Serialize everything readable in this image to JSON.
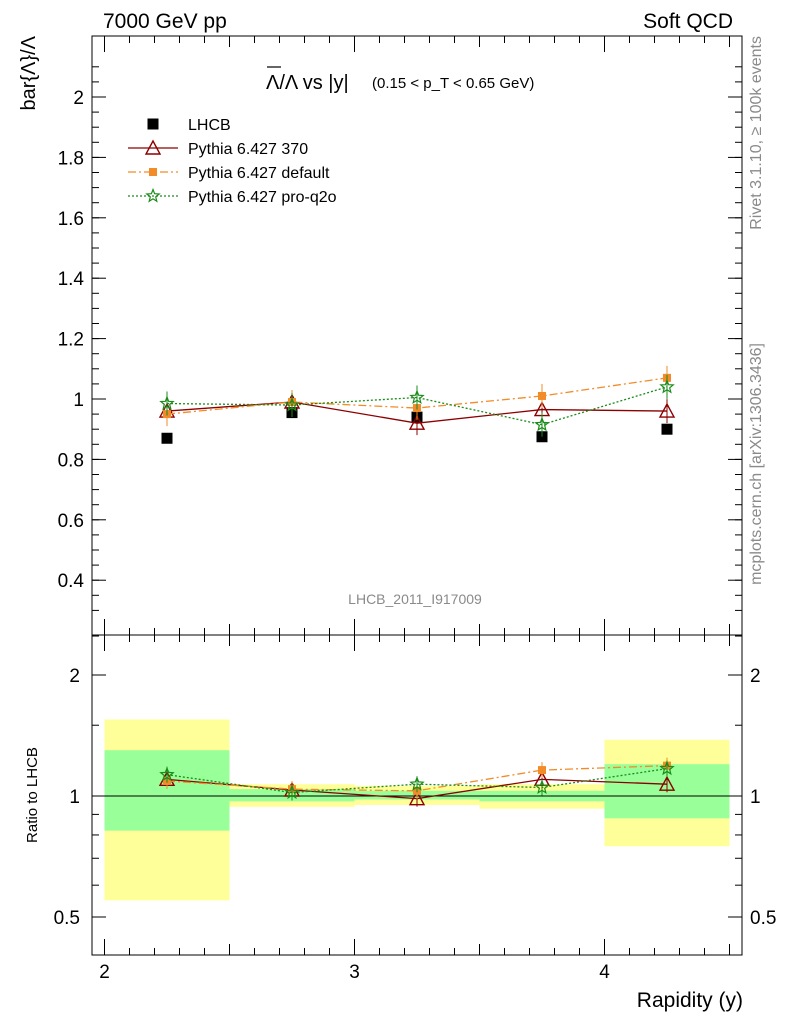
{
  "header": {
    "left": "7000 GeV pp",
    "right": "Soft QCD"
  },
  "side_labels": {
    "rivet": "Rivet 3.1.10, ≥ 100k events",
    "source": "mcplots.cern.ch [arXiv:1306.3436]"
  },
  "chart_data": [
    {
      "type": "scatter",
      "title_main": "Λ/Λ vs |y|",
      "title_cut": "(0.15 < p_T < 0.65 GeV)",
      "ylabel": "bar{Λ}/Λ",
      "watermark": "LHCB_2011_I917009",
      "xlim": [
        1.95,
        4.55
      ],
      "ylim": [
        0.25,
        2.2
      ],
      "yticks": [
        0.4,
        0.6,
        0.8,
        1,
        1.2,
        1.4,
        1.6,
        1.8,
        2
      ],
      "ytick_labels": [
        "0.4",
        "0.6",
        "0.8",
        "1",
        "1.2",
        "1.4",
        "1.6",
        "1.8",
        "2"
      ],
      "grid": false,
      "legend_position": "top-left",
      "x": [
        2.25,
        2.75,
        3.25,
        3.75,
        4.25
      ],
      "series": [
        {
          "name": "LHCB",
          "marker": "square",
          "color": "#000000",
          "values": [
            0.87,
            0.955,
            0.94,
            0.875,
            0.9
          ]
        },
        {
          "name": "Pythia 6.427 370",
          "marker": "triangle",
          "color": "#8b0000",
          "values": [
            0.96,
            0.99,
            0.92,
            0.965,
            0.96
          ]
        },
        {
          "name": "Pythia 6.427 default",
          "marker": "filled-square",
          "color": "#f28c28",
          "values": [
            0.95,
            0.99,
            0.97,
            1.01,
            1.07
          ]
        },
        {
          "name": "Pythia 6.427 pro-q2o",
          "marker": "star",
          "color": "#1a8c1a",
          "values": [
            0.985,
            0.98,
            1.005,
            0.915,
            1.04
          ]
        }
      ]
    },
    {
      "type": "line",
      "ylabel": "Ratio to LHCB",
      "xlabel": "Rapidity (y)",
      "scale": "log",
      "ylim": [
        0.4,
        2.5
      ],
      "yticks": [
        0.5,
        1,
        2
      ],
      "ytick_labels": [
        "0.5",
        "1",
        "2"
      ],
      "xticks": [
        2,
        3,
        4
      ],
      "xtick_labels": [
        "2",
        "3",
        "4"
      ],
      "bands": [
        {
          "x": [
            2.0,
            2.5
          ],
          "stat": [
            0.82,
            1.3
          ],
          "total": [
            0.55,
            1.55
          ]
        },
        {
          "x": [
            2.5,
            3.0
          ],
          "stat": [
            0.97,
            1.04
          ],
          "total": [
            0.94,
            1.07
          ]
        },
        {
          "x": [
            3.0,
            3.5
          ],
          "stat": [
            0.98,
            1.03
          ],
          "total": [
            0.95,
            1.06
          ]
        },
        {
          "x": [
            3.5,
            4.0
          ],
          "stat": [
            0.97,
            1.03
          ],
          "total": [
            0.93,
            1.07
          ]
        },
        {
          "x": [
            4.0,
            4.5
          ],
          "stat": [
            0.88,
            1.2
          ],
          "total": [
            0.75,
            1.38
          ]
        }
      ],
      "band_colors": {
        "stat": "#99ff99",
        "total": "#ffff99"
      },
      "series": [
        {
          "name": "Pythia 6.427 370",
          "values": [
            1.1,
            1.035,
            0.985,
            1.1,
            1.07
          ]
        },
        {
          "name": "Pythia 6.427 default",
          "values": [
            1.09,
            1.04,
            1.03,
            1.16,
            1.19
          ]
        },
        {
          "name": "Pythia 6.427 pro-q2o",
          "values": [
            1.13,
            1.02,
            1.07,
            1.05,
            1.17
          ]
        }
      ]
    }
  ]
}
